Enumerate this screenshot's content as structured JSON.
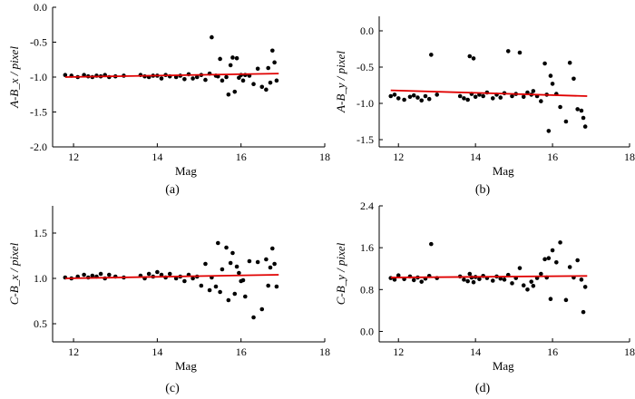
{
  "figure": {
    "colors": {
      "points": "#000000",
      "fit_line": "#e00000",
      "axes": "#000000"
    }
  },
  "chart_data": [
    {
      "type": "scatter",
      "panel": "(a)",
      "xlabel": "Mag",
      "ylabel": "A-B_x / pixel",
      "xlim": [
        11.5,
        18
      ],
      "ylim": [
        -2.0,
        0.0
      ],
      "xticks": [
        12,
        14,
        16,
        18
      ],
      "yticks": [
        -2.0,
        -1.5,
        -1.0,
        -0.5,
        0.0
      ],
      "yticklabels": [
        "-2.0",
        "-1.5",
        "-1.0",
        "-0.5",
        "0.0"
      ],
      "fit_line": {
        "x": [
          11.8,
          16.9
        ],
        "y": [
          -1.0,
          -0.95
        ]
      },
      "x": [
        11.8,
        11.95,
        12.1,
        12.25,
        12.35,
        12.45,
        12.55,
        12.65,
        12.75,
        12.85,
        13.0,
        13.2,
        13.6,
        13.7,
        13.8,
        13.9,
        14.0,
        14.1,
        14.2,
        14.3,
        14.45,
        14.55,
        14.65,
        14.75,
        14.85,
        14.95,
        15.05,
        15.15,
        15.25,
        15.3,
        15.4,
        15.45,
        15.5,
        15.55,
        15.65,
        15.7,
        15.75,
        15.8,
        15.85,
        15.9,
        15.95,
        16.0,
        16.05,
        16.1,
        16.2,
        16.3,
        16.4,
        16.5,
        16.6,
        16.65,
        16.7,
        16.75,
        16.8,
        16.85
      ],
      "y": [
        -0.97,
        -0.98,
        -1.0,
        -0.97,
        -0.99,
        -1.0,
        -0.98,
        -0.99,
        -0.97,
        -1.0,
        -0.99,
        -0.98,
        -0.97,
        -0.99,
        -1.0,
        -0.98,
        -0.98,
        -1.02,
        -0.97,
        -0.99,
        -1.0,
        -0.98,
        -1.03,
        -0.96,
        -1.02,
        -1.0,
        -0.97,
        -1.04,
        -0.95,
        -0.43,
        -0.98,
        -0.99,
        -0.74,
        -1.05,
        -1.0,
        -1.25,
        -0.83,
        -0.72,
        -1.21,
        -0.73,
        -1.01,
        -0.97,
        -1.05,
        -0.97,
        -0.98,
        -1.1,
        -0.88,
        -1.14,
        -1.18,
        -0.87,
        -1.08,
        -0.62,
        -0.79,
        -1.05
      ]
    },
    {
      "type": "scatter",
      "panel": "(b)",
      "xlabel": "Mag",
      "ylabel": "A-B_y / pixel",
      "xlim": [
        11.5,
        18
      ],
      "ylim": [
        -1.6,
        0.2
      ],
      "xticks": [
        12,
        14,
        16,
        18
      ],
      "yticks": [
        -1.5,
        -1.0,
        -0.5,
        0.0
      ],
      "yticklabels": [
        "-1.5",
        "-1.0",
        "-0.5",
        "0.0"
      ],
      "fit_line": {
        "x": [
          11.8,
          16.9
        ],
        "y": [
          -0.82,
          -0.9
        ]
      },
      "x": [
        11.8,
        11.9,
        12.0,
        12.15,
        12.3,
        12.4,
        12.5,
        12.6,
        12.7,
        12.8,
        12.85,
        13.0,
        13.6,
        13.7,
        13.8,
        13.85,
        13.9,
        13.95,
        14.0,
        14.1,
        14.2,
        14.3,
        14.45,
        14.55,
        14.65,
        14.75,
        14.85,
        14.95,
        15.05,
        15.15,
        15.25,
        15.35,
        15.45,
        15.5,
        15.6,
        15.7,
        15.8,
        15.85,
        15.9,
        15.95,
        16.0,
        16.1,
        16.2,
        16.35,
        16.45,
        16.55,
        16.65,
        16.75,
        16.8,
        16.85
      ],
      "y": [
        -0.9,
        -0.88,
        -0.93,
        -0.95,
        -0.91,
        -0.89,
        -0.92,
        -0.96,
        -0.9,
        -0.94,
        -0.33,
        -0.88,
        -0.9,
        -0.93,
        -0.95,
        -0.35,
        -0.87,
        -0.38,
        -0.91,
        -0.88,
        -0.9,
        -0.85,
        -0.93,
        -0.88,
        -0.92,
        -0.86,
        -0.28,
        -0.9,
        -0.87,
        -0.3,
        -0.91,
        -0.85,
        -0.88,
        -0.83,
        -0.9,
        -0.97,
        -0.45,
        -0.88,
        -1.38,
        -0.62,
        -0.73,
        -0.87,
        -1.05,
        -1.25,
        -0.44,
        -0.66,
        -1.08,
        -1.1,
        -1.2,
        -1.32
      ]
    },
    {
      "type": "scatter",
      "panel": "(c)",
      "xlabel": "Mag",
      "ylabel": "C-B_x / pixel",
      "xlim": [
        11.5,
        18
      ],
      "ylim": [
        0.3,
        1.8
      ],
      "xticks": [
        12,
        14,
        16,
        18
      ],
      "yticks": [
        0.5,
        1.0,
        1.5
      ],
      "yticklabels": [
        "0.5",
        "1.0",
        "1.5"
      ],
      "fit_line": {
        "x": [
          11.8,
          16.9
        ],
        "y": [
          1.0,
          1.04
        ]
      },
      "x": [
        11.8,
        11.95,
        12.1,
        12.25,
        12.35,
        12.45,
        12.55,
        12.65,
        12.75,
        12.85,
        13.0,
        13.2,
        13.6,
        13.7,
        13.8,
        13.9,
        14.0,
        14.1,
        14.2,
        14.3,
        14.45,
        14.55,
        14.65,
        14.75,
        14.85,
        14.95,
        15.05,
        15.15,
        15.25,
        15.3,
        15.4,
        15.45,
        15.5,
        15.55,
        15.65,
        15.7,
        15.75,
        15.8,
        15.85,
        15.9,
        15.95,
        16.0,
        16.05,
        16.1,
        16.2,
        16.3,
        16.4,
        16.5,
        16.6,
        16.65,
        16.7,
        16.75,
        16.8,
        16.85
      ],
      "y": [
        1.01,
        1.0,
        1.02,
        1.04,
        1.01,
        1.03,
        1.02,
        1.05,
        1.0,
        1.04,
        1.02,
        1.01,
        1.03,
        1.0,
        1.05,
        1.02,
        1.07,
        1.04,
        1.01,
        1.05,
        1.0,
        1.02,
        0.97,
        1.04,
        1.0,
        1.02,
        0.92,
        1.16,
        0.87,
        1.01,
        0.91,
        1.39,
        0.85,
        1.1,
        1.34,
        0.76,
        1.17,
        1.28,
        0.83,
        1.13,
        1.06,
        0.97,
        0.98,
        0.8,
        1.19,
        0.57,
        1.18,
        0.66,
        1.21,
        0.92,
        1.12,
        1.33,
        1.16,
        0.91
      ]
    },
    {
      "type": "scatter",
      "panel": "(d)",
      "xlabel": "Mag",
      "ylabel": "C-B_y / pixel",
      "xlim": [
        11.5,
        18
      ],
      "ylim": [
        -0.2,
        2.4
      ],
      "xticks": [
        12,
        14,
        16,
        18
      ],
      "yticks": [
        0.0,
        0.8,
        1.6,
        2.4
      ],
      "yticklabels": [
        "0.0",
        "0.8",
        "1.6",
        "2.4"
      ],
      "fit_line": {
        "x": [
          11.8,
          16.9
        ],
        "y": [
          1.03,
          1.06
        ]
      },
      "x": [
        11.8,
        11.9,
        12.0,
        12.15,
        12.3,
        12.4,
        12.5,
        12.6,
        12.7,
        12.8,
        12.85,
        13.0,
        13.6,
        13.7,
        13.8,
        13.85,
        13.9,
        13.95,
        14.0,
        14.1,
        14.2,
        14.3,
        14.45,
        14.55,
        14.65,
        14.75,
        14.85,
        14.95,
        15.05,
        15.15,
        15.25,
        15.35,
        15.45,
        15.5,
        15.6,
        15.7,
        15.8,
        15.85,
        15.9,
        15.95,
        16.0,
        16.1,
        16.2,
        16.35,
        16.45,
        16.55,
        16.65,
        16.75,
        16.8,
        16.85
      ],
      "y": [
        1.02,
        0.99,
        1.07,
        1.0,
        1.05,
        0.98,
        1.03,
        0.95,
        1.01,
        1.06,
        1.67,
        1.02,
        1.05,
        0.99,
        0.96,
        1.1,
        1.03,
        0.94,
        1.04,
        1.0,
        1.06,
        1.02,
        0.97,
        1.05,
        1.01,
        0.99,
        1.08,
        0.92,
        1.02,
        1.21,
        0.88,
        0.8,
        0.95,
        0.87,
        1.02,
        1.1,
        1.38,
        1.03,
        1.4,
        0.62,
        1.55,
        1.32,
        1.7,
        0.6,
        1.23,
        1.03,
        1.36,
        0.99,
        0.37,
        0.85
      ]
    }
  ]
}
